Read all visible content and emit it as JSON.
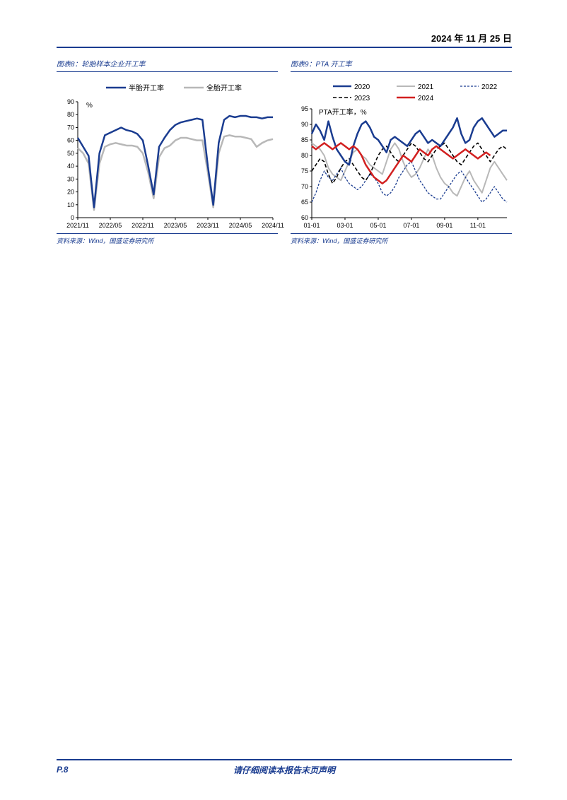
{
  "header": {
    "date": "2024 年 11 月 25 日"
  },
  "footer": {
    "page": "P.8",
    "note": "请仔细阅读本报告末页声明"
  },
  "chart8": {
    "type": "line",
    "title": "图表8：轮胎样本企业开工率",
    "source": "资料来源：Wind，国盛证券研究所",
    "ylabel": "%",
    "ylim": [
      0,
      90
    ],
    "ytick_step": 10,
    "x_categories": [
      "2021/11",
      "2022/05",
      "2022/11",
      "2023/05",
      "2023/11",
      "2024/05",
      "2024/11"
    ],
    "x_tick_idx": [
      0,
      6,
      12,
      18,
      24,
      30,
      36
    ],
    "legend": [
      {
        "label": "半胎开工率",
        "color": "#1a3c90",
        "width": 2.5
      },
      {
        "label": "全胎开工率",
        "color": "#b8b8b8",
        "width": 2.5
      }
    ],
    "background_color": "#ffffff",
    "axis_color": "#000000",
    "tick_fontsize": 9,
    "series": {
      "half": [
        62,
        55,
        48,
        8,
        50,
        64,
        66,
        68,
        70,
        68,
        67,
        65,
        60,
        40,
        18,
        55,
        62,
        68,
        72,
        74,
        75,
        76,
        77,
        76,
        40,
        10,
        58,
        76,
        79,
        78,
        79,
        79,
        78,
        78,
        77,
        78,
        78
      ],
      "full": [
        54,
        50,
        42,
        6,
        42,
        55,
        57,
        58,
        57,
        56,
        56,
        55,
        50,
        35,
        15,
        47,
        54,
        56,
        60,
        62,
        62,
        61,
        60,
        60,
        35,
        8,
        50,
        63,
        64,
        63,
        63,
        62,
        61,
        55,
        58,
        60,
        61
      ]
    }
  },
  "chart9": {
    "type": "line",
    "title": "图表9：PTA 开工率",
    "source": "资料来源：Wind，国盛证券研究所",
    "ylabel": "PTA开工率，%",
    "ylim": [
      60,
      95
    ],
    "ytick_step": 5,
    "x_categories": [
      "01-01",
      "03-01",
      "05-01",
      "07-01",
      "09-01",
      "11-01"
    ],
    "x_tick_idx": [
      0,
      8,
      16,
      24,
      32,
      40
    ],
    "n_points": 48,
    "background_color": "#ffffff",
    "axis_color": "#000000",
    "tick_fontsize": 9,
    "legend": [
      {
        "label": "2020",
        "color": "#1a3c90",
        "width": 2.5,
        "dash": ""
      },
      {
        "label": "2021",
        "color": "#b8b8b8",
        "width": 2,
        "dash": ""
      },
      {
        "label": "2022",
        "color": "#1a3c90",
        "width": 1.3,
        "dash": "3,2"
      },
      {
        "label": "2023",
        "color": "#000000",
        "width": 1.6,
        "dash": "5,3"
      },
      {
        "label": "2024",
        "color": "#d22020",
        "width": 2.5,
        "dash": ""
      }
    ],
    "series": {
      "2020": [
        87,
        90,
        88,
        85,
        91,
        86,
        82,
        80,
        78,
        77,
        83,
        87,
        90,
        91,
        89,
        86,
        85,
        83,
        81,
        85,
        86,
        85,
        84,
        83,
        85,
        87,
        88,
        86,
        84,
        85,
        84,
        83,
        85,
        87,
        89,
        92,
        87,
        84,
        85,
        89,
        91,
        92,
        90,
        88,
        86,
        87,
        88,
        88
      ],
      "2021": [
        84,
        83,
        82,
        80,
        76,
        74,
        73,
        72,
        75,
        78,
        81,
        82,
        80,
        79,
        77,
        76,
        75,
        74,
        78,
        82,
        84,
        82,
        78,
        75,
        73,
        74,
        76,
        79,
        82,
        80,
        76,
        73,
        71,
        70,
        68,
        67,
        70,
        73,
        75,
        72,
        70,
        68,
        72,
        76,
        78,
        76,
        74,
        72
      ],
      "2022": [
        65,
        68,
        72,
        75,
        73,
        72,
        74,
        76,
        73,
        71,
        70,
        69,
        70,
        72,
        74,
        73,
        71,
        68,
        67,
        68,
        70,
        73,
        75,
        77,
        78,
        75,
        72,
        70,
        68,
        67,
        66,
        66,
        68,
        70,
        72,
        74,
        75,
        73,
        71,
        69,
        67,
        65,
        66,
        68,
        70,
        68,
        66,
        65
      ],
      "2023": [
        75,
        77,
        79,
        78,
        74,
        71,
        73,
        76,
        78,
        79,
        77,
        75,
        73,
        72,
        74,
        77,
        80,
        82,
        83,
        81,
        79,
        78,
        80,
        82,
        84,
        83,
        81,
        79,
        78,
        80,
        82,
        83,
        84,
        82,
        80,
        78,
        77,
        79,
        81,
        83,
        84,
        82,
        80,
        78,
        80,
        82,
        83,
        82
      ],
      "2024": [
        83,
        82,
        83,
        84,
        83,
        82,
        83,
        84,
        83,
        82,
        83,
        82,
        80,
        77,
        75,
        73,
        72,
        71,
        72,
        74,
        76,
        78,
        80,
        79,
        78,
        80,
        82,
        81,
        80,
        82,
        83,
        82,
        81,
        80,
        79,
        80,
        81,
        82,
        81,
        80,
        79,
        80,
        81,
        80
      ]
    }
  }
}
